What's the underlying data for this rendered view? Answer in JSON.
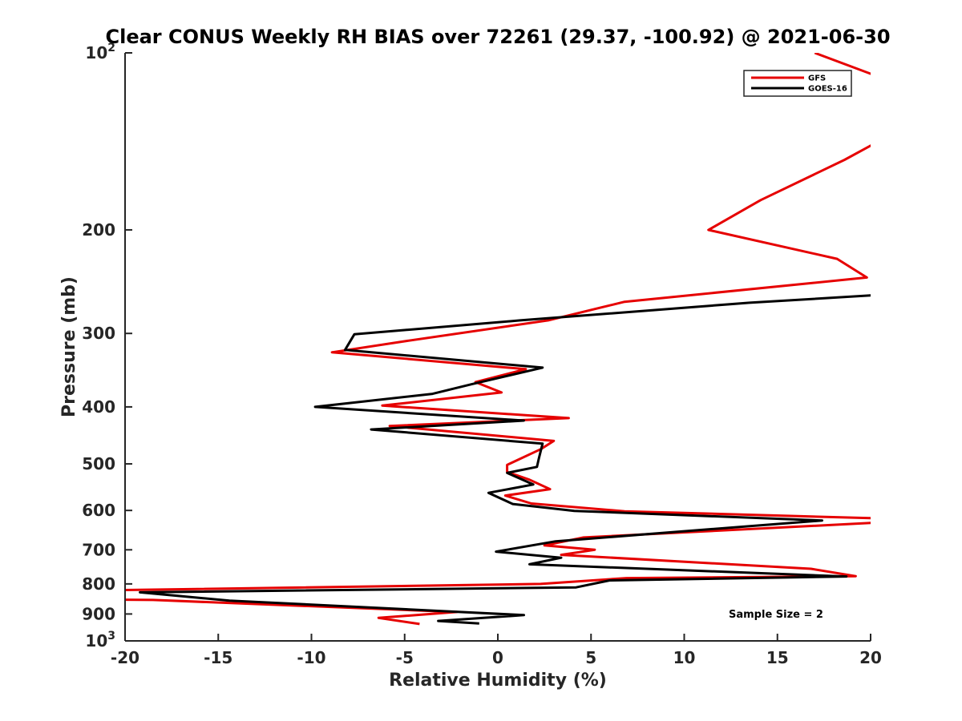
{
  "chart_data": {
    "type": "line",
    "title": "Clear CONUS Weekly RH BIAS over 72261 (29.37, -100.92) @ 2021-06-30",
    "xlabel": "Relative Humidity (%)",
    "ylabel": "Pressure (mb)",
    "xlim": [
      -20,
      20
    ],
    "ylim": [
      100,
      1000
    ],
    "yscale": "log",
    "y_reversed": true,
    "grid": false,
    "legend_position": "top-right",
    "x_ticks": [
      -20,
      -15,
      -10,
      -5,
      0,
      5,
      10,
      15,
      20
    ],
    "x_tick_labels": [
      "-20",
      "-15",
      "-10",
      "-5",
      "0",
      "5",
      "10",
      "15",
      "20"
    ],
    "y_ticks": [
      100,
      200,
      300,
      400,
      500,
      600,
      700,
      800,
      900,
      1000
    ],
    "y_tick_labels": [
      {
        "base": "10",
        "exp": "2"
      },
      {
        "base": "200"
      },
      {
        "base": "300"
      },
      {
        "base": "400"
      },
      {
        "base": "500"
      },
      {
        "base": "600"
      },
      {
        "base": "700"
      },
      {
        "base": "800"
      },
      {
        "base": "900"
      },
      {
        "base": "10",
        "exp": "3"
      }
    ],
    "annotation": "Sample Size = 2",
    "series": [
      {
        "name": "GFS",
        "color": "#e60000",
        "points": [
          [
            17.0,
            100
          ],
          [
            20.5,
            110
          ],
          [
            20.5,
            141
          ],
          [
            18.6,
            152
          ],
          [
            14.1,
            178
          ],
          [
            11.3,
            200
          ],
          [
            18.2,
            224
          ],
          [
            19.8,
            241
          ],
          [
            6.8,
            265
          ],
          [
            2.7,
            285
          ],
          [
            -4.9,
            309
          ],
          [
            -8.9,
            323
          ],
          [
            1.5,
            345
          ],
          [
            -1.2,
            363
          ],
          [
            0.2,
            378
          ],
          [
            -6.2,
            398
          ],
          [
            3.8,
            418
          ],
          [
            -5.8,
            431
          ],
          [
            3.0,
            457
          ],
          [
            2.3,
            472
          ],
          [
            0.5,
            502
          ],
          [
            0.5,
            516
          ],
          [
            1.7,
            532
          ],
          [
            2.8,
            552
          ],
          [
            0.4,
            566
          ],
          [
            1.8,
            584
          ],
          [
            6.8,
            602
          ],
          [
            20.5,
            619
          ],
          [
            20.5,
            629
          ],
          [
            4.6,
            667
          ],
          [
            2.5,
            688
          ],
          [
            5.2,
            700
          ],
          [
            3.4,
            714
          ],
          [
            16.8,
            754
          ],
          [
            19.2,
            776
          ],
          [
            6.9,
            782
          ],
          [
            2.3,
            800
          ],
          [
            -20.5,
            820
          ],
          [
            -20.5,
            851
          ],
          [
            -18.5,
            852
          ],
          [
            -2.2,
            893
          ],
          [
            -6.4,
            914
          ],
          [
            -4.2,
            936
          ]
        ]
      },
      {
        "name": "GOES-16",
        "color": "#000000",
        "points": [
          [
            20.5,
            258
          ],
          [
            13.5,
            266
          ],
          [
            1.2,
            285
          ],
          [
            -7.7,
            301
          ],
          [
            -8.2,
            320
          ],
          [
            2.4,
            343
          ],
          [
            -1.4,
            366
          ],
          [
            -3.5,
            380
          ],
          [
            -9.8,
            400
          ],
          [
            1.4,
            422
          ],
          [
            -6.8,
            437
          ],
          [
            2.4,
            462
          ],
          [
            2.2,
            490
          ],
          [
            2.1,
            506
          ],
          [
            0.5,
            518
          ],
          [
            1.9,
            542
          ],
          [
            -0.5,
            560
          ],
          [
            0.8,
            585
          ],
          [
            4.1,
            601
          ],
          [
            17.4,
            624
          ],
          [
            3.1,
            677
          ],
          [
            -0.1,
            705
          ],
          [
            3.4,
            722
          ],
          [
            1.7,
            741
          ],
          [
            18.7,
            777
          ],
          [
            6.0,
            789
          ],
          [
            4.2,
            811
          ],
          [
            -19.2,
            827
          ],
          [
            -14.4,
            854
          ],
          [
            1.4,
            904
          ],
          [
            -3.2,
            925
          ],
          [
            -1.0,
            934
          ]
        ]
      }
    ]
  }
}
